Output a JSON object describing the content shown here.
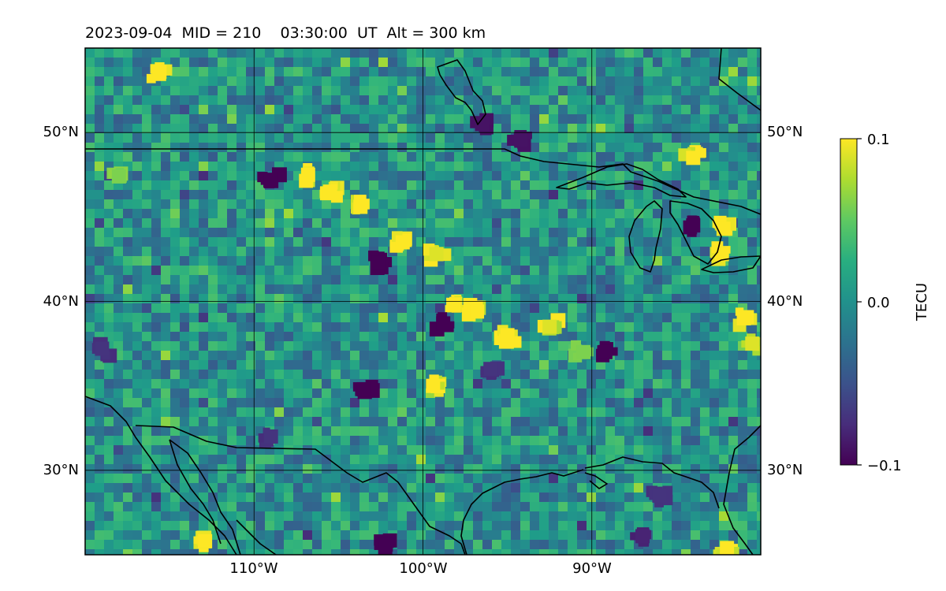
{
  "header": {
    "title": "2023-09-04  MID = 210    03:30:00  UT  Alt = 300 km"
  },
  "map": {
    "projection": "equirectangular",
    "lon_range": [
      -120,
      -80
    ],
    "lat_range": [
      25,
      55
    ],
    "gridlines": true,
    "lon_ticks": [
      {
        "lon": -110,
        "label": "110°W"
      },
      {
        "lon": -100,
        "label": "100°W"
      },
      {
        "lon": -90,
        "label": "90°W"
      }
    ],
    "lat_ticks": [
      {
        "lat": 30,
        "label": "30°N"
      },
      {
        "lat": 40,
        "label": "40°N"
      },
      {
        "lat": 50,
        "label": "50°N"
      }
    ],
    "background_color": "#21918c",
    "coastline_color": "#000000"
  },
  "colorbar": {
    "label": "TECU",
    "colormap": "viridis",
    "vmin": -0.1,
    "vmax": 0.1,
    "ticks": [
      {
        "value": 0.1,
        "label": "0.1"
      },
      {
        "value": 0.0,
        "label": "0.0"
      },
      {
        "value": -0.1,
        "label": "−0.1"
      }
    ]
  },
  "features": {
    "positive_anomalies": [
      {
        "lon": -115.6,
        "lat": 53.6,
        "value": 0.1
      },
      {
        "lon": -106.8,
        "lat": 47.5,
        "value": 0.1
      },
      {
        "lon": -105.5,
        "lat": 46.5,
        "value": 0.1
      },
      {
        "lon": -103.7,
        "lat": 45.6,
        "value": 0.1
      },
      {
        "lon": -101.2,
        "lat": 43.5,
        "value": 0.1
      },
      {
        "lon": -99.2,
        "lat": 42.8,
        "value": 0.09
      },
      {
        "lon": -98.2,
        "lat": 39.8,
        "value": 0.1
      },
      {
        "lon": -96.8,
        "lat": 39.4,
        "value": 0.1
      },
      {
        "lon": -95.0,
        "lat": 38.0,
        "value": 0.1
      },
      {
        "lon": -92.5,
        "lat": 38.5,
        "value": 0.09
      },
      {
        "lon": -84.0,
        "lat": 48.5,
        "value": 0.1
      },
      {
        "lon": -82.2,
        "lat": 44.3,
        "value": 0.1
      },
      {
        "lon": -82.3,
        "lat": 42.8,
        "value": 0.1
      },
      {
        "lon": -81.0,
        "lat": 39.0,
        "value": 0.1
      },
      {
        "lon": -80.5,
        "lat": 37.5,
        "value": 0.09
      },
      {
        "lon": -99.4,
        "lat": 35.0,
        "value": 0.1
      },
      {
        "lon": -112.9,
        "lat": 25.8,
        "value": 0.1
      },
      {
        "lon": -82.0,
        "lat": 25.4,
        "value": 0.1
      },
      {
        "lon": -118.0,
        "lat": 47.4,
        "value": 0.06
      },
      {
        "lon": -90.5,
        "lat": 37.0,
        "value": 0.06
      }
    ],
    "negative_anomalies": [
      {
        "lon": -109.0,
        "lat": 47.2,
        "value": -0.1
      },
      {
        "lon": -102.6,
        "lat": 42.3,
        "value": -0.1
      },
      {
        "lon": -98.8,
        "lat": 38.7,
        "value": -0.1
      },
      {
        "lon": -103.5,
        "lat": 34.8,
        "value": -0.1
      },
      {
        "lon": -102.2,
        "lat": 25.6,
        "value": -0.1
      },
      {
        "lon": -84.0,
        "lat": 44.5,
        "value": -0.1
      },
      {
        "lon": -96.5,
        "lat": 50.5,
        "value": -0.09
      },
      {
        "lon": -89.2,
        "lat": 37.0,
        "value": -0.1
      },
      {
        "lon": -94.2,
        "lat": 49.6,
        "value": -0.09
      },
      {
        "lon": -87.0,
        "lat": 26.1,
        "value": -0.08
      },
      {
        "lon": -119.0,
        "lat": 37.2,
        "value": -0.07
      },
      {
        "lon": -109.0,
        "lat": 32.0,
        "value": -0.07
      },
      {
        "lon": -96.0,
        "lat": 36.0,
        "value": -0.07
      },
      {
        "lon": -86.0,
        "lat": 28.5,
        "value": -0.07
      }
    ]
  }
}
